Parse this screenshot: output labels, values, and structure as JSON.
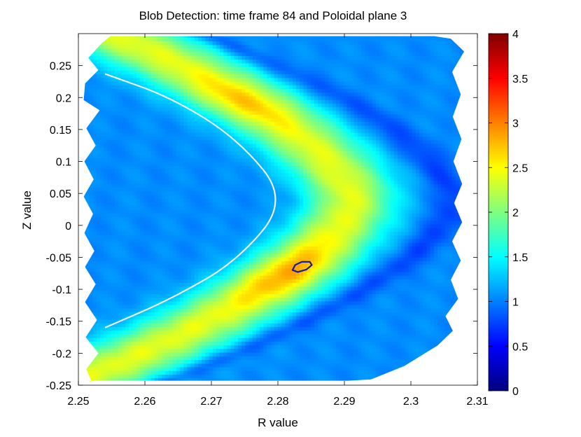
{
  "chart_data": {
    "type": "heatmap",
    "title": "Blob Detection: time frame 84 and Poloidal plane 3",
    "xlabel": "R value",
    "ylabel": "Z value",
    "xlim": [
      2.25,
      2.31
    ],
    "ylim": [
      -0.25,
      0.3
    ],
    "x_ticks": [
      "2.25",
      "2.26",
      "2.27",
      "2.28",
      "2.29",
      "2.3",
      "2.31"
    ],
    "x_tick_values": [
      2.25,
      2.26,
      2.27,
      2.28,
      2.29,
      2.3,
      2.31
    ],
    "y_ticks": [
      "-0.25",
      "-0.2",
      "-0.15",
      "-0.1",
      "-0.05",
      "0",
      "0.05",
      "0.1",
      "0.15",
      "0.2",
      "0.25"
    ],
    "y_tick_values": [
      -0.25,
      -0.2,
      -0.15,
      -0.1,
      -0.05,
      0,
      0.05,
      0.1,
      0.15,
      0.2,
      0.25
    ],
    "colorbar": {
      "colormap": "jet",
      "range": [
        0,
        4
      ],
      "ticks": [
        "0",
        "0.5",
        "1",
        "1.5",
        "2",
        "2.5",
        "3",
        "3.5",
        "4"
      ],
      "tick_values": [
        0,
        0.5,
        1,
        1.5,
        2,
        2.5,
        3,
        3.5,
        4
      ]
    },
    "field": {
      "background_value": 1.05,
      "bright_band": {
        "tip": [
          2.291,
          0.04
        ],
        "upper_end": [
          2.255,
          0.3
        ],
        "lower_end": [
          2.255,
          -0.25
        ],
        "peak_value": 2.2,
        "upper_peak": [
          2.272,
          0.19
        ],
        "lower_peak": [
          2.282,
          -0.075
        ]
      },
      "dark_outer_band": {
        "tip": [
          2.302,
          0.04
        ],
        "value": 0.75
      }
    },
    "separatrix_curve": {
      "color": "#ffffff",
      "points": [
        [
          2.254,
          0.237
        ],
        [
          2.264,
          0.2
        ],
        [
          2.274,
          0.135
        ],
        [
          2.2815,
          0.04
        ],
        [
          2.274,
          -0.055
        ],
        [
          2.264,
          -0.115
        ],
        [
          2.254,
          -0.16
        ]
      ]
    },
    "detected_blob": {
      "color": "#1a1aa8",
      "center": [
        2.2835,
        -0.063
      ],
      "outline": [
        [
          2.2822,
          -0.07
        ],
        [
          2.2826,
          -0.062
        ],
        [
          2.2836,
          -0.057
        ],
        [
          2.2848,
          -0.057
        ],
        [
          2.2851,
          -0.062
        ],
        [
          2.2843,
          -0.069
        ],
        [
          2.283,
          -0.073
        ]
      ]
    }
  }
}
